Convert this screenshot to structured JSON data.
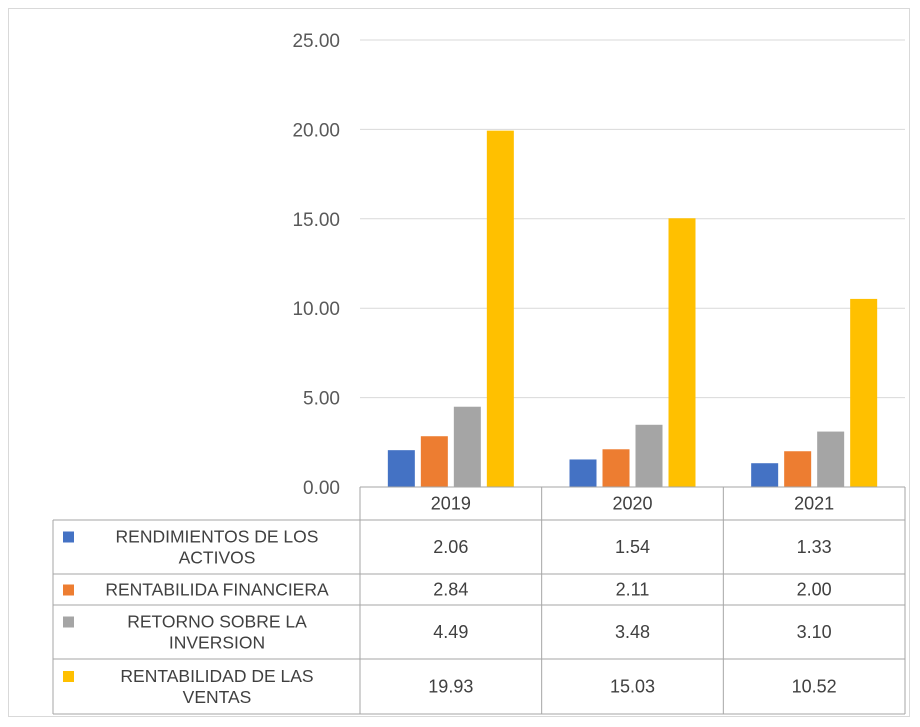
{
  "chart_data": {
    "type": "bar",
    "categories": [
      "2019",
      "2020",
      "2021"
    ],
    "series": [
      {
        "name": "RENDIMIENTOS DE LOS ACTIVOS",
        "label_lines": [
          "RENDIMIENTOS DE LOS",
          "ACTIVOS"
        ],
        "color": "#4472C4",
        "values": [
          2.06,
          1.54,
          1.33
        ],
        "value_labels": [
          "2.06",
          "1.54",
          "1.33"
        ]
      },
      {
        "name": "RENTABILIDA FINANCIERA",
        "label_lines": [
          "RENTABILIDA FINANCIERA"
        ],
        "color": "#ED7D31",
        "values": [
          2.84,
          2.11,
          2.0
        ],
        "value_labels": [
          "2.84",
          "2.11",
          "2.00"
        ]
      },
      {
        "name": "RETORNO SOBRE LA INVERSION",
        "label_lines": [
          "RETORNO SOBRE LA",
          "INVERSION"
        ],
        "color": "#A5A5A5",
        "values": [
          4.49,
          3.48,
          3.1
        ],
        "value_labels": [
          "4.49",
          "3.48",
          "3.10"
        ]
      },
      {
        "name": "RENTABILIDAD DE LAS VENTAS",
        "label_lines": [
          "RENTABILIDAD DE LAS",
          "VENTAS"
        ],
        "color": "#FFC000",
        "values": [
          19.93,
          15.03,
          10.52
        ],
        "value_labels": [
          "19.93",
          "15.03",
          "10.52"
        ]
      }
    ],
    "ylim": [
      0,
      25
    ],
    "yticks": [
      "0.00",
      "5.00",
      "10.00",
      "15.00",
      "20.00",
      "25.00"
    ],
    "grid": true,
    "legend": "data table below chart"
  }
}
